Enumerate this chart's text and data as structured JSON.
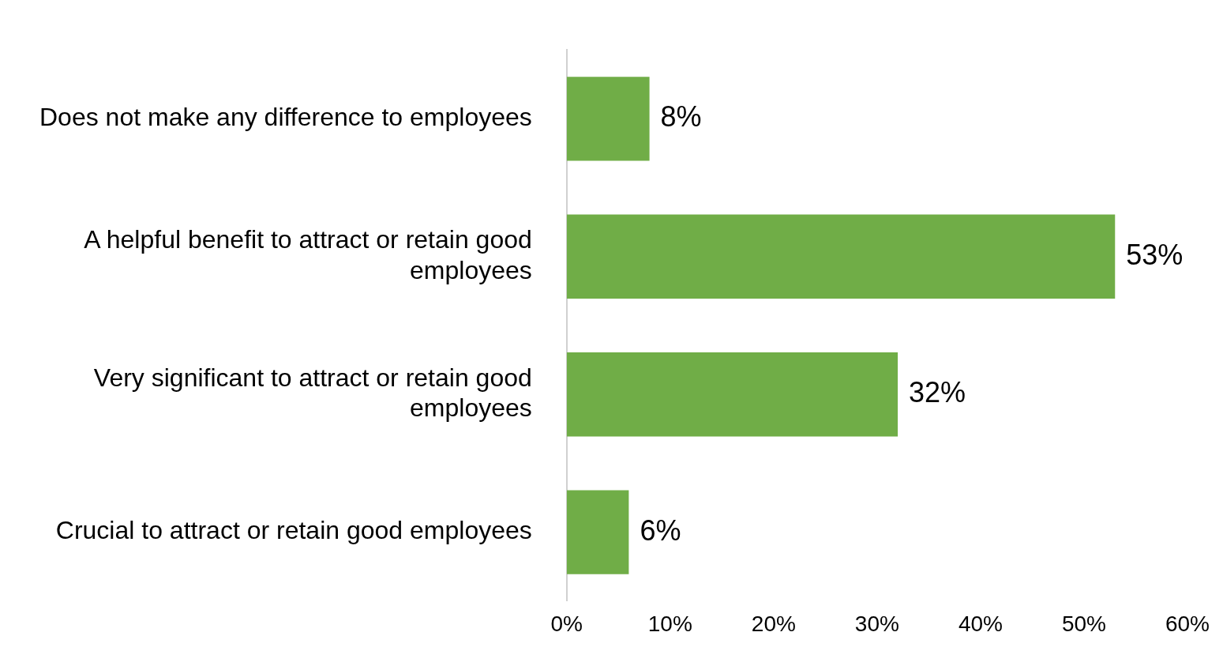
{
  "chart_data": {
    "type": "bar",
    "orientation": "horizontal",
    "categories": [
      "Does not make any difference to employees",
      "A helpful benefit to attract or retain good employees",
      "Very significant to attract or retain good employees",
      "Crucial to attract or retain good employees"
    ],
    "values": [
      8,
      53,
      32,
      6
    ],
    "value_labels": [
      "8%",
      "53%",
      "32%",
      "6%"
    ],
    "color": "#70ad47",
    "xlim": [
      0,
      60
    ],
    "xticks": [
      {
        "value": 0,
        "label": "0%"
      },
      {
        "value": 10,
        "label": "10%"
      },
      {
        "value": 20,
        "label": "20%"
      },
      {
        "value": 30,
        "label": "30%"
      },
      {
        "value": 40,
        "label": "40%"
      },
      {
        "value": 50,
        "label": "50%"
      },
      {
        "value": 60,
        "label": "60%"
      }
    ],
    "grid": false,
    "legend": false
  }
}
